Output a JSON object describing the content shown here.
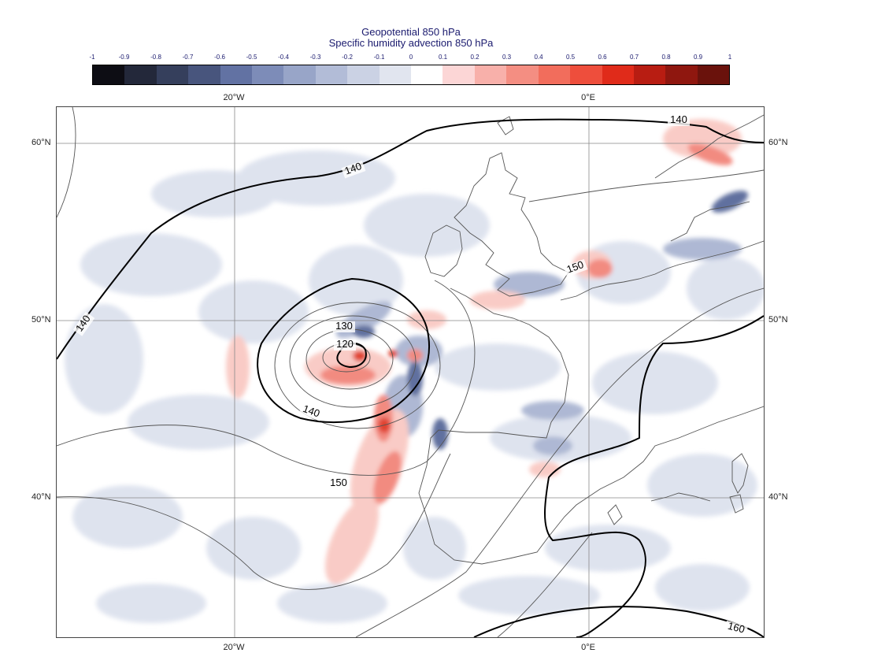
{
  "titles": {
    "line1": "Geopotential 850 hPa",
    "line2": "Specific humidity advection 850 hPa"
  },
  "colorbar": {
    "ticks": [
      "-1",
      "-0.9",
      "-0.8",
      "-0.7",
      "-0.6",
      "-0.5",
      "-0.4",
      "-0.3",
      "-0.2",
      "-0.1",
      "0",
      "0.1",
      "0.2",
      "0.3",
      "0.4",
      "0.5",
      "0.6",
      "0.7",
      "0.8",
      "0.9",
      "1"
    ],
    "colors": [
      "#0d0d14",
      "#23283a",
      "#353f5c",
      "#48557d",
      "#6272a3",
      "#7d8cb8",
      "#98a5c8",
      "#b2bcd7",
      "#cbd2e4",
      "#e1e5ef",
      "#ffffff",
      "#fcd6d6",
      "#f8b0aa",
      "#f48e82",
      "#f26d5c",
      "#ee4e3c",
      "#e02b1a",
      "#b81d12",
      "#8f170f",
      "#6a120c"
    ]
  },
  "axes": {
    "lon_labels": [
      "20°W",
      "0°E"
    ],
    "lat_labels": [
      "60°N",
      "50°N",
      "40°N"
    ]
  },
  "contour_labels": [
    "140",
    "140",
    "140",
    "130",
    "120",
    "140",
    "150",
    "150",
    "160"
  ],
  "map": {
    "fill_colors": {
      "neg_light": "#dde2ee",
      "neg_mid": "#aab5d2",
      "neg_dark": "#58699a",
      "pos_light": "#f9c9c3",
      "pos_mid": "#f2857a",
      "pos_dark": "#e03a28"
    },
    "contour_color": "#000000",
    "coast_color": "#555555"
  }
}
